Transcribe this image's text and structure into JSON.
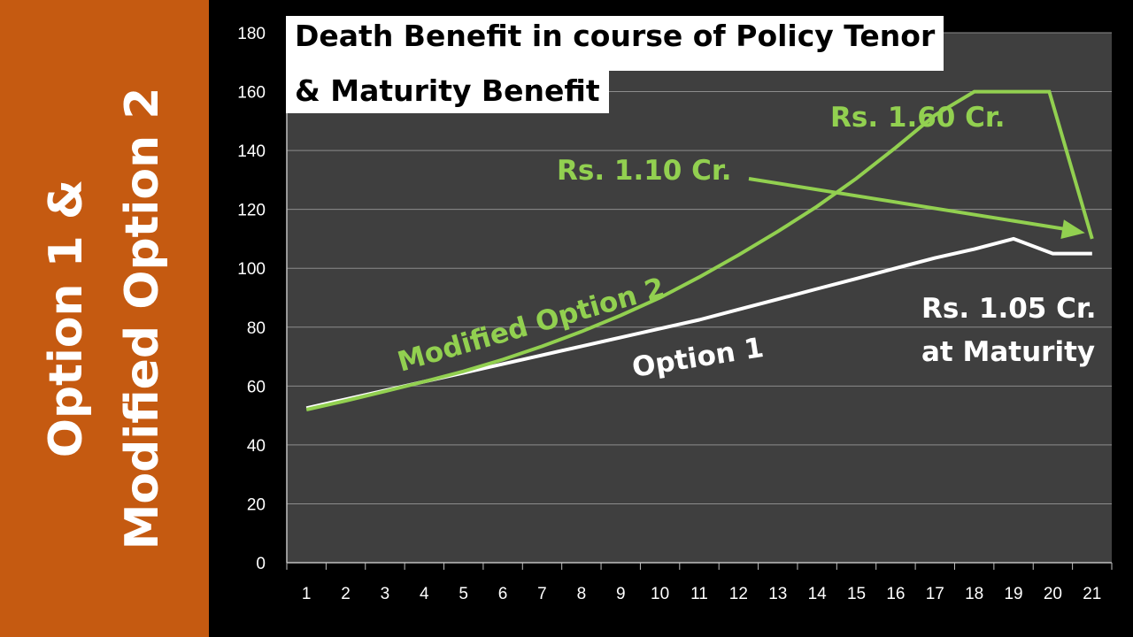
{
  "side_title": [
    "Option 1 &",
    "Modified Option 2"
  ],
  "chart_data": {
    "type": "line",
    "title": "Death Benefit in course of Policy Tenor & Maturity Benefit",
    "title_lines": [
      "Death Benefit in course of Policy Tenor",
      "& Maturity Benefit"
    ],
    "categories": [
      "1",
      "2",
      "3",
      "4",
      "5",
      "6",
      "7",
      "8",
      "9",
      "10",
      "11",
      "12",
      "13",
      "14",
      "15",
      "16",
      "17",
      "18",
      "19",
      "20",
      "21"
    ],
    "ylim": [
      0,
      180
    ],
    "yticks": [
      0,
      20,
      40,
      60,
      80,
      100,
      120,
      140,
      160,
      180
    ],
    "grid": true,
    "series": [
      {
        "name": "Option 1",
        "color": "#FFFFFF",
        "values": [
          52.5,
          55.5,
          58.5,
          61.5,
          64.5,
          67.5,
          70.5,
          73.5,
          76.5,
          79.5,
          82.5,
          86,
          89.5,
          93,
          96.5,
          100,
          103.5,
          106.5,
          110,
          105,
          105
        ]
      },
      {
        "name": "Modified Option 2",
        "color": "#92D050",
        "values": [
          52,
          55,
          58.2,
          61.5,
          65,
          69,
          73.5,
          78.5,
          84,
          90,
          97,
          104.5,
          112.5,
          121,
          130.5,
          141,
          152,
          160,
          160,
          160,
          110
        ]
      }
    ],
    "annotations": {
      "rs_160": "Rs. 1.60 Cr.",
      "rs_110": "Rs. 1.10 Cr.",
      "rs_105_line1": "Rs. 1.05 Cr.",
      "rs_105_line2": "at Maturity",
      "modified_option_2": "Modified Option 2",
      "option_1": "Option 1"
    },
    "colors": {
      "background": "#3F3F3F",
      "panel": "#C55A11",
      "green": "#92D050",
      "white": "#FFFFFF",
      "grid": "#8C8C8C"
    }
  }
}
